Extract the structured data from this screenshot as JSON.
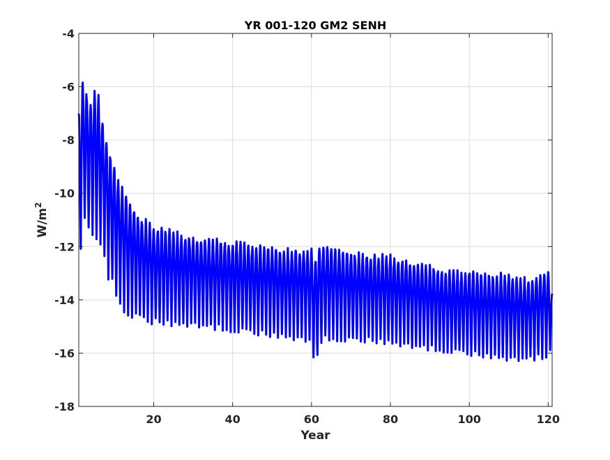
{
  "chart_data": {
    "type": "line",
    "title": "YR 001-120 GM2 SENH",
    "xlabel": "Year",
    "ylabel": "W/m",
    "ylabel_superscript": "2",
    "xlim": [
      1,
      121
    ],
    "ylim": [
      -18,
      -4
    ],
    "xticks": [
      20,
      40,
      60,
      80,
      100,
      120
    ],
    "yticks": [
      -4,
      -6,
      -8,
      -10,
      -12,
      -14,
      -16,
      -18
    ],
    "grid": true,
    "line_color": "#0000ff",
    "series": [
      {
        "sampling": "monthly (12 values per year)",
        "annual_envelope": {
          "year": [
            1,
            2,
            3,
            4,
            5,
            6,
            7,
            8,
            9,
            10,
            11,
            12,
            13,
            14,
            15,
            16,
            17,
            18,
            19,
            20,
            22,
            25,
            30,
            35,
            40,
            45,
            50,
            55,
            60,
            61,
            62,
            65,
            70,
            75,
            80,
            85,
            90,
            95,
            100,
            105,
            110,
            115,
            120,
            121
          ],
          "max": [
            -7.0,
            -5.9,
            -6.3,
            -6.7,
            -6.2,
            -6.5,
            -7.3,
            -8.0,
            -8.7,
            -9.1,
            -9.5,
            -9.8,
            -10.2,
            -10.4,
            -10.7,
            -10.9,
            -11.0,
            -11.1,
            -11.2,
            -11.3,
            -11.4,
            -11.5,
            -11.7,
            -11.8,
            -11.9,
            -12.0,
            -12.1,
            -12.2,
            -12.2,
            -12.5,
            -12.0,
            -12.1,
            -12.3,
            -12.4,
            -12.4,
            -12.6,
            -12.8,
            -13.0,
            -13.0,
            -13.1,
            -13.1,
            -13.3,
            -13.0,
            -13.8
          ],
          "min": [
            -13.4,
            -10.4,
            -11.5,
            -11.2,
            -11.6,
            -11.8,
            -12.0,
            -12.9,
            -13.2,
            -13.5,
            -13.9,
            -14.2,
            -14.4,
            -14.5,
            -14.6,
            -14.6,
            -14.7,
            -14.7,
            -14.8,
            -14.8,
            -14.8,
            -14.9,
            -14.9,
            -15.0,
            -15.1,
            -15.2,
            -15.3,
            -15.4,
            -15.5,
            -16.8,
            -15.5,
            -15.4,
            -15.5,
            -15.5,
            -15.6,
            -15.7,
            -15.8,
            -15.9,
            -16.0,
            -16.1,
            -16.2,
            -16.2,
            -16.1,
            -15.5
          ]
        }
      }
    ]
  }
}
